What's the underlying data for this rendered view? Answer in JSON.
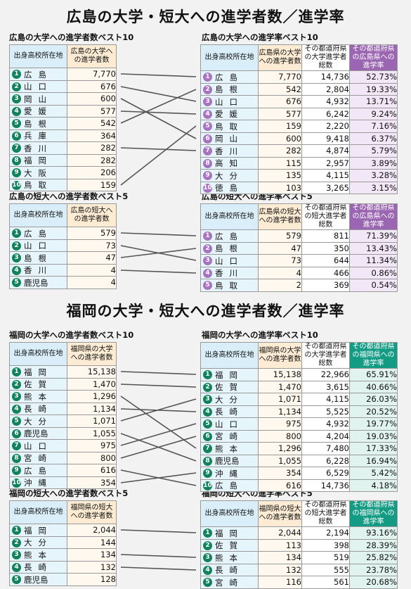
{
  "hiroshima": {
    "title": "広島の大学・短大への進学者数／進学率",
    "univ_count": {
      "title": "広島の大学への進学者数ベスト10",
      "h_loc": "出身高校所在地",
      "h_val": "広島の大学への進学者数",
      "rows": [
        {
          "rank": "1",
          "name": "広島",
          "value": "7,770"
        },
        {
          "rank": "2",
          "name": "山口",
          "value": "676"
        },
        {
          "rank": "3",
          "name": "岡山",
          "value": "600"
        },
        {
          "rank": "4",
          "name": "愛媛",
          "value": "577"
        },
        {
          "rank": "5",
          "name": "島根",
          "value": "542"
        },
        {
          "rank": "6",
          "name": "兵庫",
          "value": "364"
        },
        {
          "rank": "7",
          "name": "香川",
          "value": "282"
        },
        {
          "rank": "8",
          "name": "福岡",
          "value": "282"
        },
        {
          "rank": "9",
          "name": "大阪",
          "value": "206"
        },
        {
          "rank": "10",
          "name": "鳥取",
          "value": "159"
        }
      ]
    },
    "univ_rate": {
      "title": "広島の大学への進学率ベスト10",
      "h_loc": "出身高校所在地",
      "h_val": "広島県の大学への進学者数",
      "h_base": "その都道府県の大学進学者総数",
      "h_pct": "その都道府県の広島県への進学率",
      "rows": [
        {
          "rank": "1",
          "name": "広島",
          "value": "7,770",
          "base": "14,736",
          "pct": "52.73%"
        },
        {
          "rank": "2",
          "name": "島根",
          "value": "542",
          "base": "2,804",
          "pct": "19.33%"
        },
        {
          "rank": "3",
          "name": "山口",
          "value": "676",
          "base": "4,932",
          "pct": "13.71%"
        },
        {
          "rank": "4",
          "name": "愛媛",
          "value": "577",
          "base": "6,242",
          "pct": "9.24%"
        },
        {
          "rank": "5",
          "name": "鳥取",
          "value": "159",
          "base": "2,220",
          "pct": "7.16%"
        },
        {
          "rank": "6",
          "name": "岡山",
          "value": "600",
          "base": "9,418",
          "pct": "6.37%"
        },
        {
          "rank": "7",
          "name": "香川",
          "value": "282",
          "base": "4,874",
          "pct": "5.79%"
        },
        {
          "rank": "8",
          "name": "高知",
          "value": "115",
          "base": "2,957",
          "pct": "3.89%"
        },
        {
          "rank": "9",
          "name": "大分",
          "value": "135",
          "base": "4,115",
          "pct": "3.28%"
        },
        {
          "rank": "10",
          "name": "徳島",
          "value": "103",
          "base": "3,265",
          "pct": "3.15%"
        }
      ]
    },
    "jc_count": {
      "title": "広島の短大への進学者数ベスト5",
      "h_loc": "出身高校所在地",
      "h_val": "広島の短大への進学者数",
      "rows": [
        {
          "rank": "1",
          "name": "広島",
          "value": "579"
        },
        {
          "rank": "2",
          "name": "山口",
          "value": "73"
        },
        {
          "rank": "3",
          "name": "島根",
          "value": "47"
        },
        {
          "rank": "4",
          "name": "香川",
          "value": "4"
        },
        {
          "rank": "5",
          "name": "鹿児島",
          "value": "4"
        }
      ]
    },
    "jc_rate": {
      "title": "広島の短大への進学率ベスト5",
      "h_loc": "出身高校所在地",
      "h_val": "広島県の短大への進学者数",
      "h_base": "その都道府県の短大進学者総数",
      "h_pct": "その都道府県の広島県への進学率",
      "rows": [
        {
          "rank": "1",
          "name": "広島",
          "value": "579",
          "base": "811",
          "pct": "71.39%"
        },
        {
          "rank": "2",
          "name": "島根",
          "value": "47",
          "base": "350",
          "pct": "13.43%"
        },
        {
          "rank": "3",
          "name": "山口",
          "value": "73",
          "base": "644",
          "pct": "11.34%"
        },
        {
          "rank": "4",
          "name": "香川",
          "value": "4",
          "base": "466",
          "pct": "0.86%"
        },
        {
          "rank": "5",
          "name": "鳥取",
          "value": "2",
          "base": "369",
          "pct": "0.54%"
        }
      ]
    }
  },
  "fukuoka": {
    "title": "福岡の大学・短大への進学者数／進学率",
    "univ_count": {
      "title": "福岡の大学への進学者数ベスト10",
      "h_loc": "出身高校所在地",
      "h_val": "福岡県の大学への進学者数",
      "rows": [
        {
          "rank": "1",
          "name": "福岡",
          "value": "15,138"
        },
        {
          "rank": "2",
          "name": "佐賀",
          "value": "1,470"
        },
        {
          "rank": "3",
          "name": "熊本",
          "value": "1,296"
        },
        {
          "rank": "4",
          "name": "長崎",
          "value": "1,134"
        },
        {
          "rank": "5",
          "name": "大分",
          "value": "1,071"
        },
        {
          "rank": "6",
          "name": "鹿児島",
          "value": "1,055"
        },
        {
          "rank": "7",
          "name": "山口",
          "value": "975"
        },
        {
          "rank": "8",
          "name": "宮崎",
          "value": "800"
        },
        {
          "rank": "9",
          "name": "広島",
          "value": "616"
        },
        {
          "rank": "10",
          "name": "沖縄",
          "value": "354"
        }
      ]
    },
    "univ_rate": {
      "title": "福岡の大学への進学率ベスト10",
      "h_loc": "出身高校所在地",
      "h_val": "福岡県の大学への進学者数",
      "h_base": "その都道府県の大学進学者総数",
      "h_pct": "その都道府県の福岡県への進学率",
      "rows": [
        {
          "rank": "1",
          "name": "福岡",
          "value": "15,138",
          "base": "22,966",
          "pct": "65.91%"
        },
        {
          "rank": "2",
          "name": "佐賀",
          "value": "1,470",
          "base": "3,615",
          "pct": "40.66%"
        },
        {
          "rank": "3",
          "name": "大分",
          "value": "1,071",
          "base": "4,115",
          "pct": "26.03%"
        },
        {
          "rank": "4",
          "name": "長崎",
          "value": "1,134",
          "base": "5,525",
          "pct": "20.52%"
        },
        {
          "rank": "5",
          "name": "山口",
          "value": "975",
          "base": "4,932",
          "pct": "19.77%"
        },
        {
          "rank": "6",
          "name": "宮崎",
          "value": "800",
          "base": "4,204",
          "pct": "19.03%"
        },
        {
          "rank": "7",
          "name": "熊本",
          "value": "1,296",
          "base": "7,480",
          "pct": "17.33%"
        },
        {
          "rank": "8",
          "name": "鹿児島",
          "value": "1,055",
          "base": "6,228",
          "pct": "16.94%"
        },
        {
          "rank": "9",
          "name": "沖縄",
          "value": "354",
          "base": "6,529",
          "pct": "5.42%"
        },
        {
          "rank": "10",
          "name": "広島",
          "value": "616",
          "base": "14,736",
          "pct": "4.18%"
        }
      ]
    },
    "jc_count": {
      "title": "福岡の短大への進学者数ベスト5",
      "h_loc": "出身高校所在地",
      "h_val": "福岡県の短大への進学者数",
      "rows": [
        {
          "rank": "1",
          "name": "福岡",
          "value": "2,044"
        },
        {
          "rank": "2",
          "name": "大分",
          "value": "144"
        },
        {
          "rank": "3",
          "name": "熊本",
          "value": "134"
        },
        {
          "rank": "4",
          "name": "長崎",
          "value": "132"
        },
        {
          "rank": "5",
          "name": "鹿児島",
          "value": "128"
        }
      ]
    },
    "jc_rate": {
      "title": "福岡の短大への進学率ベスト5",
      "h_loc": "出身高校所在地",
      "h_val": "福岡県の短大への進学者数",
      "h_base": "その都道府県の短大進学者総数",
      "h_pct": "その都道府県の福岡県への進学率",
      "rows": [
        {
          "rank": "1",
          "name": "福岡",
          "value": "2,044",
          "base": "2,194",
          "pct": "93.16%"
        },
        {
          "rank": "2",
          "name": "佐賀",
          "value": "113",
          "base": "398",
          "pct": "28.39%"
        },
        {
          "rank": "3",
          "name": "熊本",
          "value": "134",
          "base": "519",
          "pct": "25.82%"
        },
        {
          "rank": "4",
          "name": "長崎",
          "value": "132",
          "base": "555",
          "pct": "23.78%"
        },
        {
          "rank": "5",
          "name": "宮崎",
          "value": "116",
          "base": "561",
          "pct": "20.68%"
        }
      ]
    }
  }
}
